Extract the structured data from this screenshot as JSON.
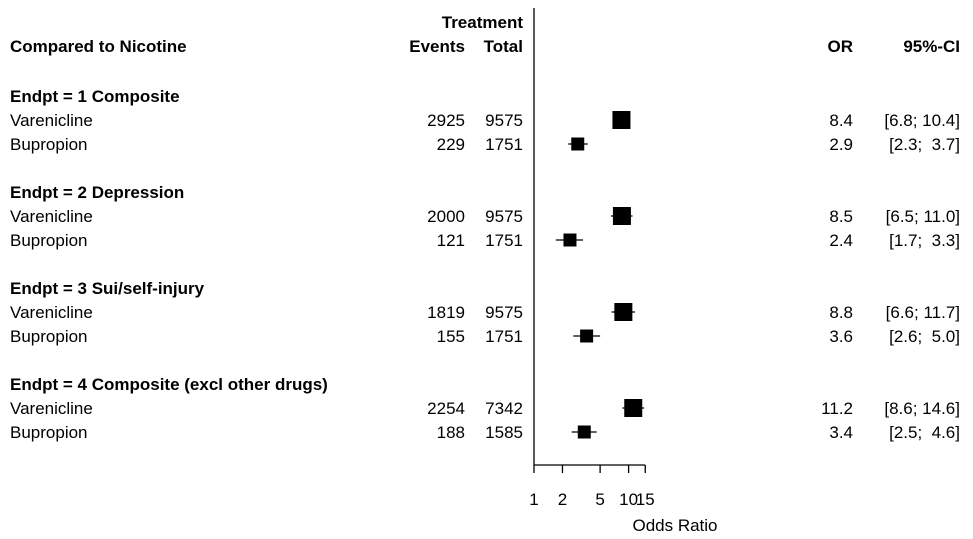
{
  "chart_data": {
    "type": "forest",
    "headers": {
      "study": "Compared to Nicotine",
      "treatment_group": "Treatment",
      "events": "Events",
      "total": "Total",
      "or": "OR",
      "ci": "95%-CI"
    },
    "xlabel": "Odds Ratio",
    "x_scale": "log",
    "xlim": [
      1,
      15
    ],
    "xticks": [
      1,
      2,
      5,
      10,
      15
    ],
    "xtick_labels": [
      "1",
      "2",
      "5",
      "10",
      "15"
    ],
    "reference_line": 1,
    "groups": [
      {
        "title": "Endpt = 1 Composite",
        "rows": [
          {
            "label": "Varenicline",
            "events": "2925",
            "total": "9575",
            "or": 8.4,
            "lo": 6.8,
            "hi": 10.4,
            "or_text": "8.4",
            "ci_text": "[6.8; 10.4]"
          },
          {
            "label": "Bupropion",
            "events": "229",
            "total": "1751",
            "or": 2.9,
            "lo": 2.3,
            "hi": 3.7,
            "or_text": "2.9",
            "ci_text": "[2.3;  3.7]"
          }
        ]
      },
      {
        "title": "Endpt = 2 Depression",
        "rows": [
          {
            "label": "Varenicline",
            "events": "2000",
            "total": "9575",
            "or": 8.5,
            "lo": 6.5,
            "hi": 11.0,
            "or_text": "8.5",
            "ci_text": "[6.5; 11.0]"
          },
          {
            "label": "Bupropion",
            "events": "121",
            "total": "1751",
            "or": 2.4,
            "lo": 1.7,
            "hi": 3.3,
            "or_text": "2.4",
            "ci_text": "[1.7;  3.3]"
          }
        ]
      },
      {
        "title": "Endpt = 3 Sui/self-injury",
        "rows": [
          {
            "label": "Varenicline",
            "events": "1819",
            "total": "9575",
            "or": 8.8,
            "lo": 6.6,
            "hi": 11.7,
            "or_text": "8.8",
            "ci_text": "[6.6; 11.7]"
          },
          {
            "label": "Bupropion",
            "events": "155",
            "total": "1751",
            "or": 3.6,
            "lo": 2.6,
            "hi": 5.0,
            "or_text": "3.6",
            "ci_text": "[2.6;  5.0]"
          }
        ]
      },
      {
        "title": "Endpt = 4  Composite (excl other drugs)",
        "rows": [
          {
            "label": "Varenicline",
            "events": "2254",
            "total": "7342",
            "or": 11.2,
            "lo": 8.6,
            "hi": 14.6,
            "or_text": "11.2",
            "ci_text": "[8.6; 14.6]"
          },
          {
            "label": "Bupropion",
            "events": "188",
            "total": "1585",
            "or": 3.4,
            "lo": 2.5,
            "hi": 4.6,
            "or_text": "3.4",
            "ci_text": "[2.5;  4.6]"
          }
        ]
      }
    ]
  }
}
